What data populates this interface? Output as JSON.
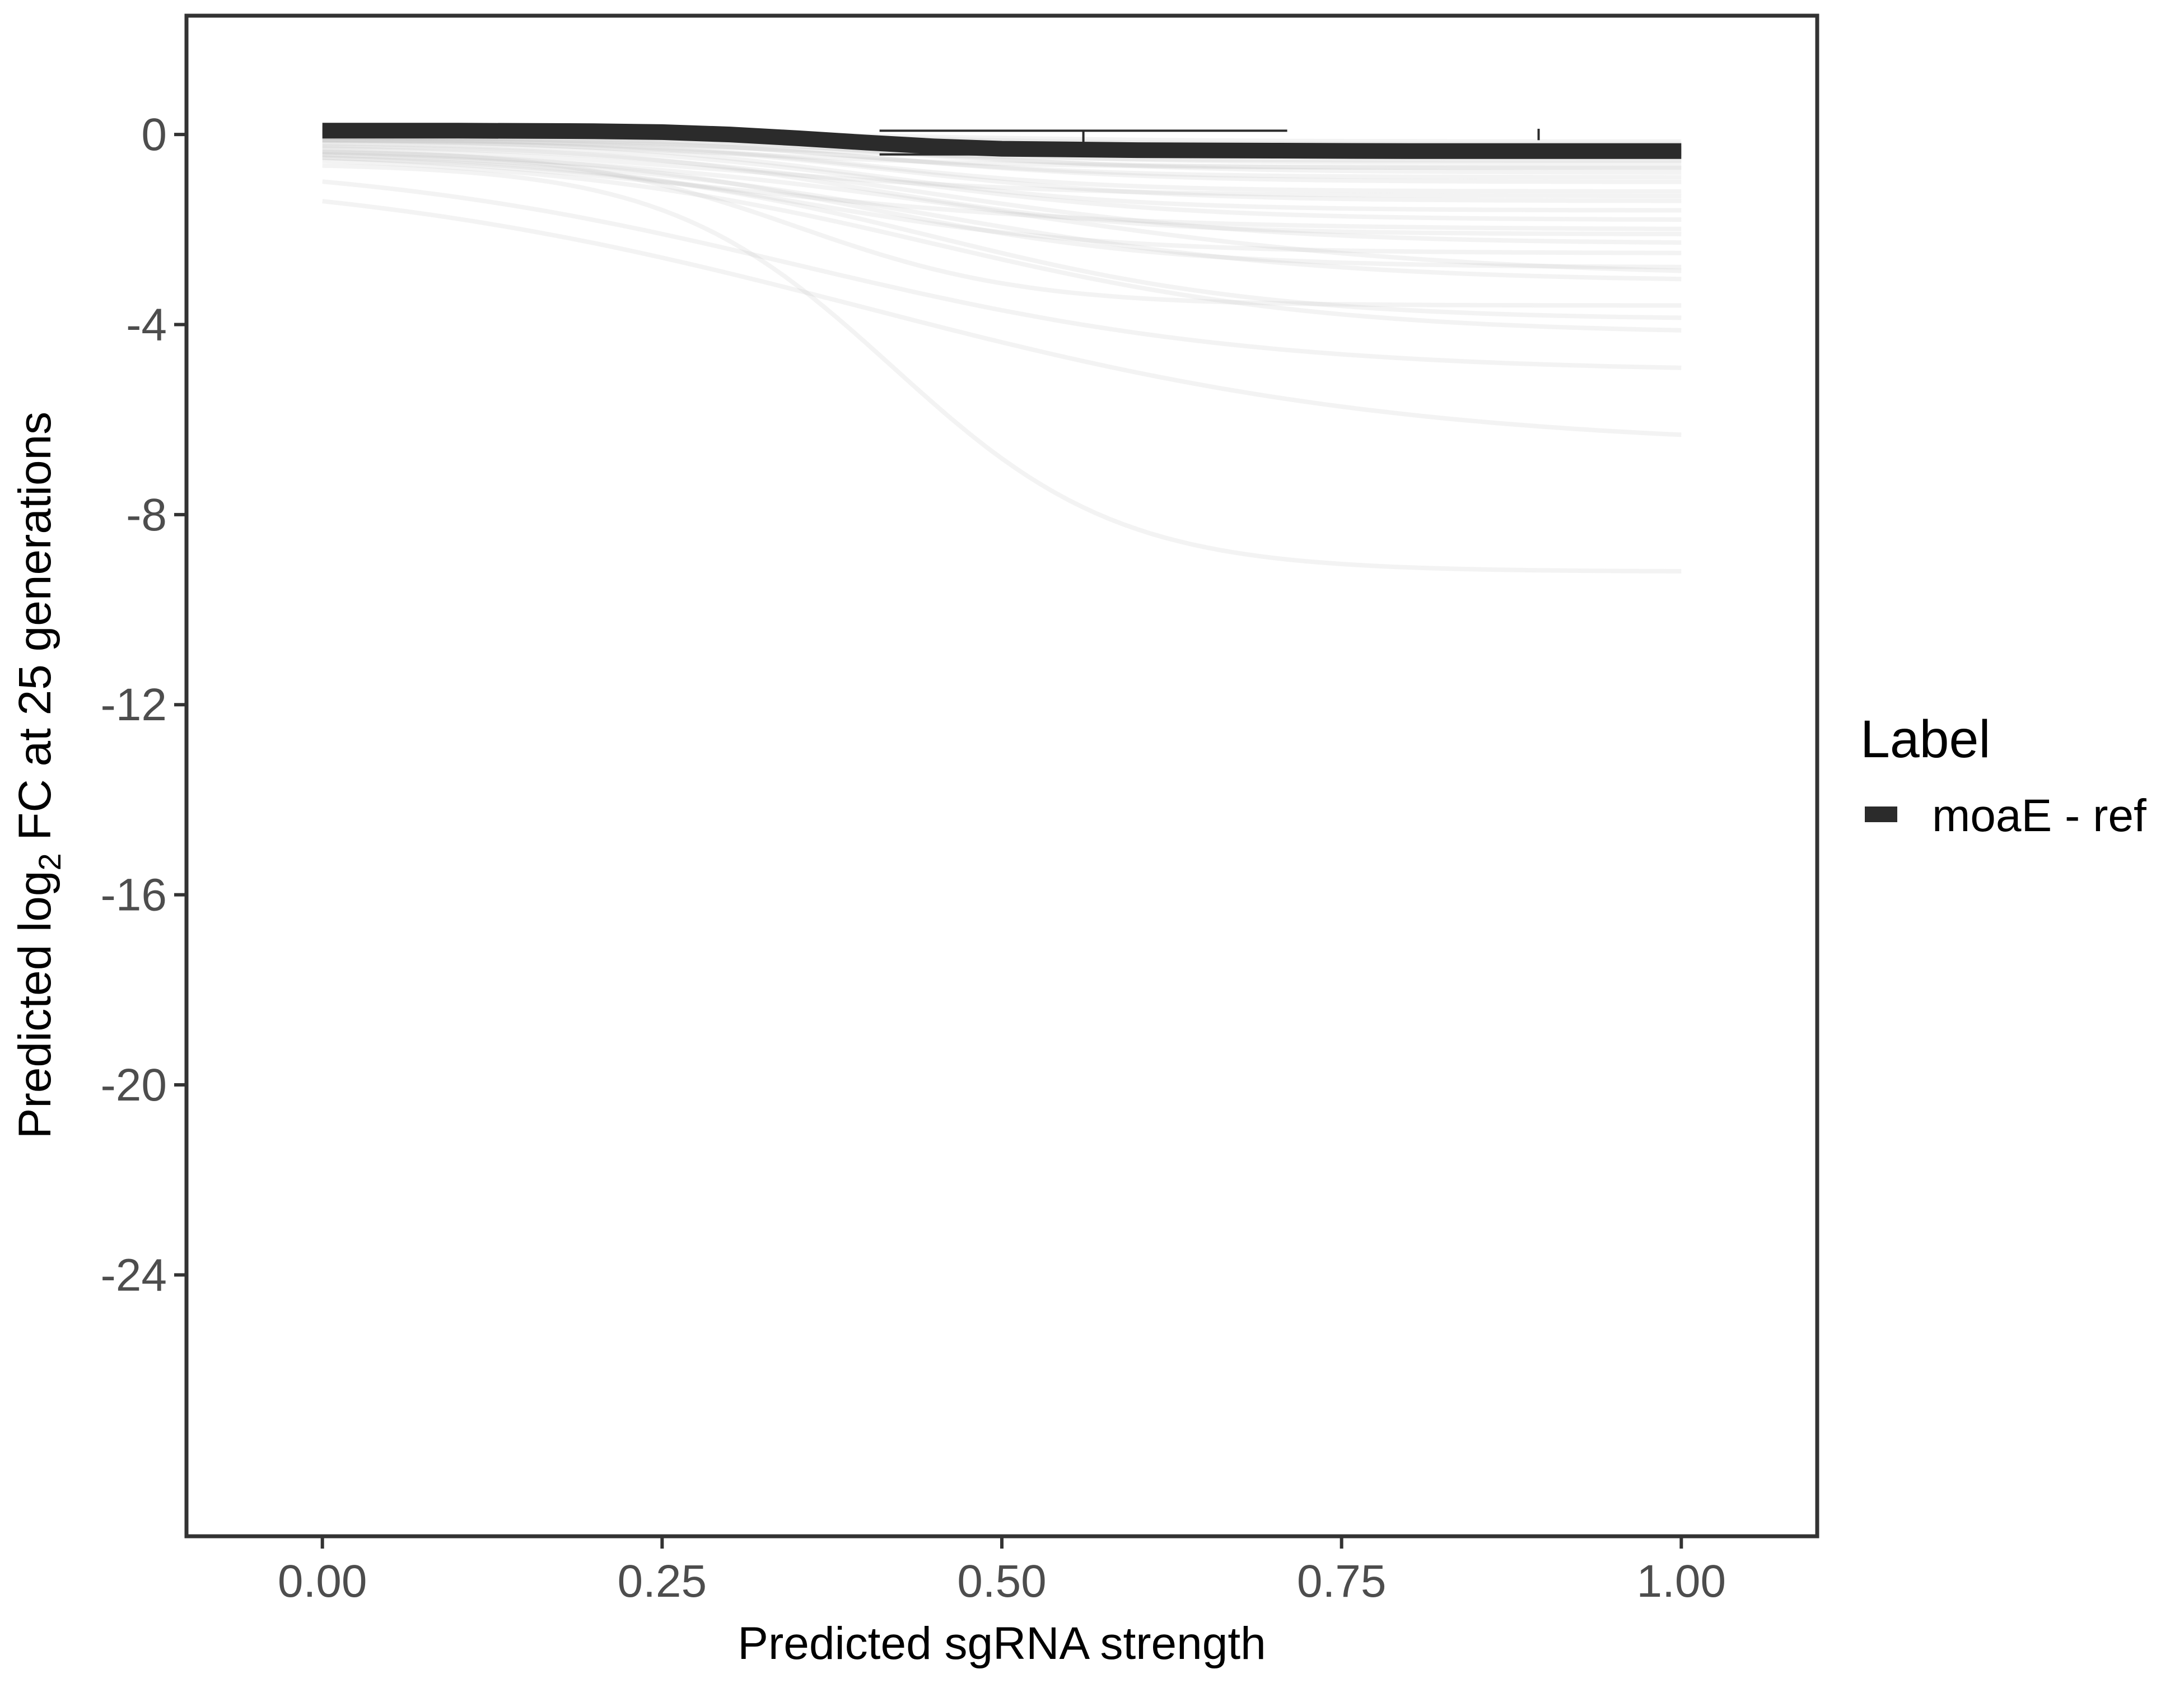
{
  "chart_data": {
    "type": "line",
    "title": "",
    "xlabel": "Predicted sgRNA strength",
    "ylabel_parts": {
      "before": "Predicted  log",
      "sub": "2",
      "after": " FC at 25 generations"
    },
    "xlim": [
      -0.1,
      1.1
    ],
    "ylim": [
      -29.5,
      2.5
    ],
    "x_ticks": [
      0,
      0.25,
      0.5,
      0.75,
      1
    ],
    "x_tick_labels": [
      "0.00",
      "0.25",
      "0.50",
      "0.75",
      "1.00"
    ],
    "y_ticks": [
      0,
      -4,
      -8,
      -12,
      -16,
      -20,
      -24
    ],
    "y_tick_labels": [
      "0",
      "-4",
      "-8",
      "-12",
      "-16",
      "-20",
      "-24"
    ],
    "grid": false,
    "legend": {
      "position": "right",
      "title": "Label",
      "entries": [
        {
          "name": "moaE - ref",
          "color": "#2b2b2b"
        }
      ]
    },
    "highlight": {
      "name": "moaE - ref",
      "color": "#2b2b2b",
      "x": [
        0,
        0.1,
        0.2,
        0.25,
        0.3,
        0.35,
        0.4,
        0.45,
        0.5,
        0.6,
        0.7,
        0.8,
        0.9,
        1.0
      ],
      "y": [
        0.08,
        0.08,
        0.07,
        0.05,
        0.0,
        -0.08,
        -0.17,
        -0.25,
        -0.3,
        -0.33,
        -0.34,
        -0.35,
        -0.35,
        -0.35
      ],
      "band_low": [
        -0.02,
        -0.02,
        -0.03,
        -0.05,
        -0.1,
        -0.18,
        -0.27,
        -0.35,
        -0.4,
        -0.43,
        -0.45,
        -0.45,
        -0.45,
        -0.45
      ],
      "band_high": [
        0.18,
        0.18,
        0.17,
        0.15,
        0.1,
        0.02,
        -0.07,
        -0.15,
        -0.2,
        -0.23,
        -0.24,
        -0.25,
        -0.25,
        -0.25
      ]
    },
    "errorbars": [
      {
        "x_start": 0.41,
        "x_end": 0.71,
        "x_mid": 0.56,
        "y_top": 0.08,
        "y_bottom": -0.42
      },
      {
        "x_mid": 0.895,
        "y_top": 0.12,
        "y_bottom": -0.12
      }
    ],
    "background_series": {
      "color": "#b4b4b4",
      "opacity": 0.16,
      "curves": [
        {
          "start": -0.6,
          "end": -9.2,
          "mid": 0.42,
          "k": 12
        },
        {
          "start": -0.7,
          "end": -6.6,
          "mid": 0.4,
          "k": 5
        },
        {
          "start": -0.5,
          "end": -5.0,
          "mid": 0.35,
          "k": 6
        },
        {
          "start": -0.4,
          "end": -4.2,
          "mid": 0.45,
          "k": 7
        },
        {
          "start": -0.4,
          "end": -3.9,
          "mid": 0.45,
          "k": 8
        },
        {
          "start": -0.3,
          "end": -3.6,
          "mid": 0.35,
          "k": 12
        },
        {
          "start": -0.3,
          "end": -3.1,
          "mid": 0.45,
          "k": 7
        },
        {
          "start": -0.3,
          "end": -2.8,
          "mid": 0.4,
          "k": 9
        },
        {
          "start": -0.2,
          "end": -2.3,
          "mid": 0.45,
          "k": 8
        },
        {
          "start": -0.2,
          "end": -2.1,
          "mid": 0.4,
          "k": 10
        },
        {
          "start": -0.15,
          "end": -1.8,
          "mid": 0.42,
          "k": 9
        },
        {
          "start": -0.1,
          "end": -1.6,
          "mid": 0.4,
          "k": 10
        },
        {
          "start": -0.1,
          "end": -1.4,
          "mid": 0.42,
          "k": 10
        },
        {
          "start": -0.1,
          "end": -1.2,
          "mid": 0.4,
          "k": 11
        },
        {
          "start": -0.05,
          "end": -1.0,
          "mid": 0.42,
          "k": 10
        },
        {
          "start": -0.05,
          "end": -0.9,
          "mid": 0.4,
          "k": 11
        },
        {
          "start": -0.05,
          "end": -0.8,
          "mid": 0.45,
          "k": 10
        },
        {
          "start": 0.0,
          "end": -0.7,
          "mid": 0.4,
          "k": 12
        },
        {
          "start": 0.0,
          "end": -0.6,
          "mid": 0.42,
          "k": 11
        },
        {
          "start": 0.0,
          "end": -0.5,
          "mid": 0.45,
          "k": 10
        },
        {
          "start": 0.0,
          "end": -0.45,
          "mid": 0.4,
          "k": 12
        },
        {
          "start": 0.0,
          "end": -0.4,
          "mid": 0.42,
          "k": 11
        },
        {
          "start": 0.05,
          "end": -0.3,
          "mid": 0.45,
          "k": 10
        },
        {
          "start": 0.05,
          "end": -0.25,
          "mid": 0.4,
          "k": 12
        },
        {
          "start": 0.05,
          "end": -0.2,
          "mid": 0.42,
          "k": 11
        },
        {
          "start": 0.05,
          "end": -0.15,
          "mid": 0.45,
          "k": 10
        },
        {
          "start": -0.2,
          "end": -1.3,
          "mid": 0.3,
          "k": 8
        },
        {
          "start": -0.3,
          "end": -2.0,
          "mid": 0.3,
          "k": 7
        },
        {
          "start": -0.25,
          "end": -3.0,
          "mid": 0.5,
          "k": 6
        },
        {
          "start": -0.35,
          "end": -2.5,
          "mid": 0.35,
          "k": 9
        },
        {
          "start": -0.1,
          "end": -0.7,
          "mid": 0.3,
          "k": 9
        },
        {
          "start": -0.1,
          "end": -0.55,
          "mid": 0.35,
          "k": 10
        }
      ]
    }
  }
}
